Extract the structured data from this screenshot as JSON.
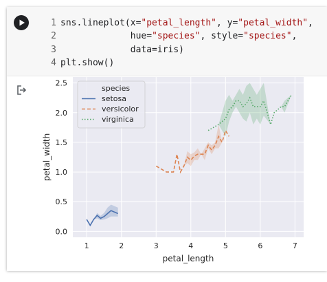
{
  "cell": {
    "run_button_icon": "play-icon",
    "line_numbers": [
      "1",
      "2",
      "3",
      "4"
    ],
    "code_lines": [
      [
        {
          "t": "sns.lineplot(x=",
          "s": "plain"
        },
        {
          "t": "\"petal_length\"",
          "s": "str"
        },
        {
          "t": ", y=",
          "s": "plain"
        },
        {
          "t": "\"petal_width\"",
          "s": "str"
        },
        {
          "t": ",",
          "s": "plain"
        }
      ],
      [
        {
          "t": "             hue=",
          "s": "plain"
        },
        {
          "t": "\"species\"",
          "s": "str"
        },
        {
          "t": ", style=",
          "s": "plain"
        },
        {
          "t": "\"species\"",
          "s": "str"
        },
        {
          "t": ",",
          "s": "plain"
        }
      ],
      [
        {
          "t": "             data=iris)",
          "s": "plain"
        }
      ],
      [
        {
          "t": "plt.show()",
          "s": "plain"
        }
      ]
    ],
    "output_icon": "output-redirect-icon"
  },
  "colors": {
    "setosa": "#4c72b0",
    "versicolor": "#dd8452",
    "virginica": "#55a868",
    "plot_bg": "#eaeaf2",
    "grid": "#ffffff",
    "string": "#a31515"
  },
  "chart_data": {
    "type": "line",
    "xlabel": "petal_length",
    "ylabel": "petal_width",
    "xlim": [
      0.6,
      7.25
    ],
    "ylim": [
      -0.1,
      2.6
    ],
    "xticks": [
      1,
      2,
      3,
      4,
      5,
      6,
      7
    ],
    "yticks": [
      0.0,
      0.5,
      1.0,
      1.5,
      2.0,
      2.5
    ],
    "ytick_labels": [
      "0.0",
      "0.5",
      "1.0",
      "1.5",
      "2.0",
      "2.5"
    ],
    "grid": true,
    "legend": {
      "title": "species",
      "position": "top-left"
    },
    "series": [
      {
        "name": "setosa",
        "style": "solid",
        "x": [
          1.0,
          1.1,
          1.2,
          1.3,
          1.4,
          1.5,
          1.6,
          1.7,
          1.9
        ],
        "y": [
          0.2,
          0.1,
          0.2,
          0.27,
          0.22,
          0.25,
          0.3,
          0.35,
          0.3
        ],
        "band_low": [
          0.2,
          0.1,
          0.2,
          0.22,
          0.19,
          0.2,
          0.22,
          0.25,
          0.25
        ],
        "band_high": [
          0.2,
          0.1,
          0.2,
          0.31,
          0.26,
          0.31,
          0.4,
          0.45,
          0.4
        ]
      },
      {
        "name": "versicolor",
        "style": "dashed",
        "x": [
          3.0,
          3.3,
          3.5,
          3.6,
          3.7,
          3.8,
          3.9,
          4.0,
          4.1,
          4.2,
          4.3,
          4.4,
          4.5,
          4.6,
          4.7,
          4.8,
          4.9,
          5.0,
          5.1
        ],
        "y": [
          1.1,
          1.0,
          1.0,
          1.3,
          1.0,
          1.1,
          1.25,
          1.2,
          1.27,
          1.3,
          1.3,
          1.3,
          1.45,
          1.37,
          1.45,
          1.6,
          1.5,
          1.7,
          1.6
        ],
        "band_low": [
          1.1,
          1.0,
          1.0,
          1.3,
          1.0,
          1.1,
          1.15,
          1.1,
          1.2,
          1.2,
          1.3,
          1.2,
          1.4,
          1.3,
          1.4,
          1.4,
          1.5,
          1.7,
          1.6
        ],
        "band_high": [
          1.1,
          1.0,
          1.0,
          1.3,
          1.0,
          1.1,
          1.35,
          1.3,
          1.33,
          1.4,
          1.3,
          1.4,
          1.5,
          1.45,
          1.5,
          1.8,
          1.5,
          1.7,
          1.6
        ]
      },
      {
        "name": "virginica",
        "style": "dotted",
        "x": [
          4.5,
          4.8,
          4.9,
          5.0,
          5.1,
          5.2,
          5.3,
          5.4,
          5.5,
          5.6,
          5.7,
          5.8,
          5.9,
          6.0,
          6.1,
          6.3,
          6.4,
          6.6,
          6.7,
          6.9
        ],
        "y": [
          1.7,
          1.8,
          1.85,
          1.9,
          2.05,
          2.1,
          2.2,
          2.2,
          2.1,
          2.15,
          2.25,
          2.1,
          2.1,
          2.1,
          2.2,
          1.8,
          2.0,
          2.1,
          2.1,
          2.3
        ],
        "band_low": [
          1.7,
          1.8,
          1.7,
          1.6,
          1.85,
          2.0,
          2.1,
          2.0,
          1.9,
          1.85,
          2.0,
          1.8,
          1.9,
          1.8,
          1.95,
          1.8,
          2.0,
          2.1,
          2.0,
          2.3
        ],
        "band_high": [
          1.7,
          1.8,
          2.0,
          2.2,
          2.3,
          2.2,
          2.3,
          2.4,
          2.3,
          2.45,
          2.5,
          2.4,
          2.3,
          2.4,
          2.5,
          1.8,
          2.0,
          2.1,
          2.2,
          2.3
        ]
      }
    ]
  }
}
